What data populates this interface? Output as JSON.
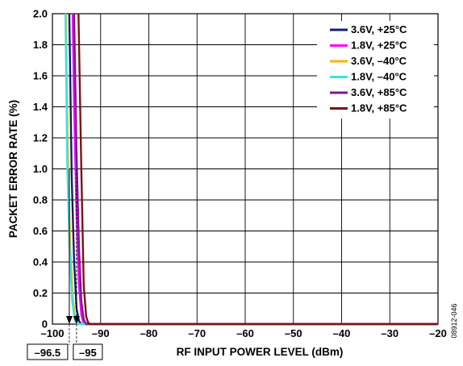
{
  "chart_data": {
    "type": "line",
    "title": "",
    "xlabel": "RF INPUT POWER LEVEL (dBm)",
    "ylabel": "PACKET ERROR RATE (%)",
    "xlim": [
      -100,
      -20
    ],
    "ylim": [
      0,
      2.0
    ],
    "x_ticks": [
      -100,
      -90,
      -80,
      -70,
      -60,
      -50,
      -40,
      -30,
      -20
    ],
    "x_tick_labels": [
      "–100",
      "–90",
      "–80",
      "–70",
      "–60",
      "–50",
      "–40",
      "–30",
      "–20"
    ],
    "y_ticks": [
      0,
      0.2,
      0.4,
      0.6,
      0.8,
      1.0,
      1.2,
      1.4,
      1.6,
      1.8,
      2.0
    ],
    "y_tick_labels": [
      "0",
      "0.2",
      "0.4",
      "0.6",
      "0.8",
      "1.0",
      "1.2",
      "1.4",
      "1.6",
      "1.8",
      "2.0"
    ],
    "grid": true,
    "legend_position": "top-right",
    "series": [
      {
        "name": "3.6V, +25°C",
        "color": "#1a1a6e",
        "x": [
          -96.5,
          -96.0,
          -95.5,
          -95.0,
          -94.5,
          -94.0,
          -20
        ],
        "y": [
          2.0,
          0.95,
          0.4,
          0.1,
          0.02,
          0,
          0
        ]
      },
      {
        "name": "1.8V, +25°C",
        "color": "#ff00ff",
        "x": [
          -95.8,
          -95.5,
          -95.0,
          -94.5,
          -94.0,
          -93.5,
          -20
        ],
        "y": [
          2.0,
          1.4,
          0.7,
          0.25,
          0.06,
          0,
          0
        ]
      },
      {
        "name": "3.6V, –40°C",
        "color": "#ffb300",
        "x": [
          -97.2,
          -96.8,
          -96.3,
          -95.8,
          -95.3,
          -94.8,
          -20
        ],
        "y": [
          2.0,
          1.1,
          0.5,
          0.18,
          0.04,
          0,
          0
        ]
      },
      {
        "name": "1.8V, –40°C",
        "color": "#33e6e6",
        "x": [
          -97.3,
          -96.9,
          -96.4,
          -95.9,
          -95.4,
          -94.9,
          -20
        ],
        "y": [
          2.0,
          1.0,
          0.45,
          0.15,
          0.03,
          0,
          0
        ]
      },
      {
        "name": "3.6V, +85°C",
        "color": "#7a1a8c",
        "x": [
          -95.5,
          -95.0,
          -94.5,
          -94.0,
          -93.5,
          -93.0,
          -20
        ],
        "y": [
          2.0,
          1.1,
          0.5,
          0.15,
          0.03,
          0,
          0
        ]
      },
      {
        "name": "1.8V, +85°C",
        "color": "#7a1414",
        "x": [
          -94.6,
          -94.0,
          -93.5,
          -93.0,
          -92.6,
          -92.2,
          -20
        ],
        "y": [
          2.0,
          1.0,
          0.25,
          0.05,
          0.01,
          0,
          0
        ]
      }
    ],
    "annotations": [
      {
        "label": "–96.5",
        "x": -96.5
      },
      {
        "label": "–95",
        "x": -95
      }
    ],
    "side_note": "08912-046"
  }
}
